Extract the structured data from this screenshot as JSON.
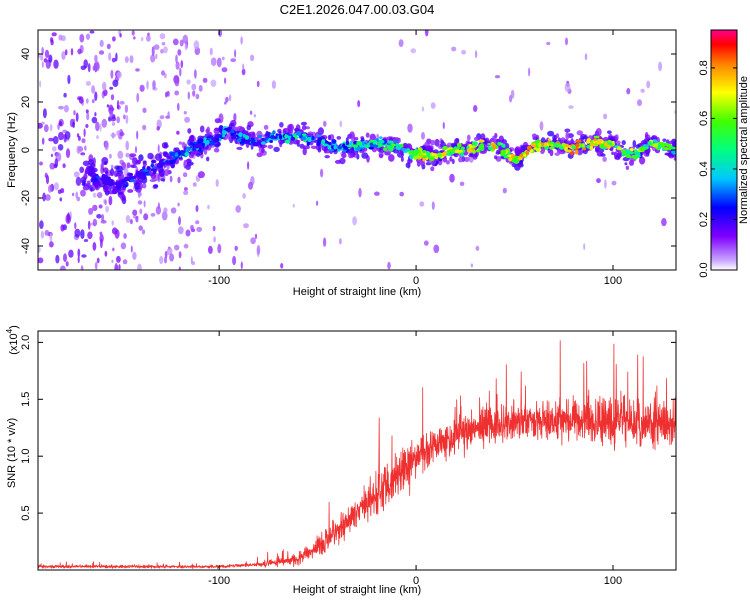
{
  "figure_title": "C2E1.2026.047.00.03.G04",
  "colors": {
    "signal_line": "#ef3030",
    "axis": "#000000",
    "background": "#ffffff"
  },
  "chart_data": [
    {
      "type": "heatmap",
      "title": "C2E1.2026.047.00.03.G04",
      "xlabel": "Height of straight line (km)",
      "ylabel": "Frequency (Hz)",
      "xlim": [
        -192,
        132
      ],
      "ylim": [
        -50,
        50
      ],
      "x_ticks": [
        -100,
        0,
        100
      ],
      "x_tick_labels": [
        "-100",
        "0",
        "100"
      ],
      "y_ticks": [
        -40,
        -20,
        0,
        20,
        40
      ],
      "y_tick_labels": [
        "-40",
        "-20",
        "0",
        "20",
        "40"
      ],
      "colorbar": {
        "label": "Normalized spectral amplitude",
        "range": [
          0,
          0.95
        ],
        "ticks": [
          0,
          0.2,
          0.4,
          0.6,
          0.8
        ],
        "tick_labels": [
          "0.0",
          "0.2",
          "0.4",
          "0.6",
          "0.8"
        ],
        "colormap": [
          "#ffffff",
          "#8000ff",
          "#0000ff",
          "#00ffff",
          "#00ff00",
          "#ffff00",
          "#ff8000",
          "#ff0000",
          "#ff00a0"
        ]
      },
      "ridge": {
        "x": [
          -160,
          -150,
          -140,
          -130,
          -120,
          -110,
          -100,
          -95,
          -90,
          -80,
          -70,
          -60,
          -50,
          -40,
          -30,
          -20,
          -10,
          0,
          10,
          20,
          30,
          40,
          45,
          50,
          55,
          60,
          70,
          80,
          90,
          100,
          110,
          120,
          132
        ],
        "frequency": [
          -12,
          -14,
          -10,
          -6,
          -2,
          2,
          6,
          9,
          5,
          3,
          6,
          6,
          4,
          1,
          2,
          3,
          2,
          -2,
          -2,
          0,
          1,
          2,
          -1,
          -4,
          -2,
          2,
          2,
          1,
          3,
          2,
          -2,
          3,
          0
        ],
        "amplitude": [
          0.3,
          0.3,
          0.35,
          0.4,
          0.45,
          0.45,
          0.5,
          0.45,
          0.45,
          0.45,
          0.5,
          0.55,
          0.5,
          0.55,
          0.55,
          0.6,
          0.65,
          0.8,
          0.85,
          0.8,
          0.85,
          0.85,
          0.8,
          0.9,
          0.85,
          0.9,
          0.85,
          0.9,
          0.85,
          0.8,
          0.75,
          0.75,
          0.7
        ]
      }
    },
    {
      "type": "line",
      "xlabel": "Height of straight line (km)",
      "ylabel": "SNR (10 * v/v)",
      "y_scale_label": "(x10",
      "y_scale_exponent": "4",
      "y_scale_suffix": ")",
      "xlim": [
        -192,
        132
      ],
      "ylim": [
        0,
        2.1
      ],
      "x_ticks": [
        -100,
        0,
        100
      ],
      "x_tick_labels": [
        "-100",
        "0",
        "100"
      ],
      "y_ticks": [
        0.5,
        1.0,
        1.5,
        2.0
      ],
      "y_tick_labels": [
        "0.5",
        "1.0",
        "1.5",
        "2.0"
      ],
      "series": [
        {
          "name": "SNR",
          "color": "#ef3030",
          "x": [
            -192,
            -180,
            -160,
            -140,
            -120,
            -100,
            -90,
            -80,
            -70,
            -60,
            -55,
            -50,
            -45,
            -40,
            -35,
            -30,
            -25,
            -20,
            -15,
            -10,
            -5,
            0,
            5,
            10,
            15,
            20,
            25,
            30,
            40,
            50,
            60,
            70,
            80,
            90,
            100,
            110,
            120,
            132
          ],
          "mean": [
            0.03,
            0.03,
            0.03,
            0.03,
            0.03,
            0.03,
            0.04,
            0.05,
            0.07,
            0.1,
            0.14,
            0.2,
            0.26,
            0.34,
            0.42,
            0.5,
            0.58,
            0.66,
            0.75,
            0.83,
            0.9,
            0.97,
            1.04,
            1.1,
            1.15,
            1.2,
            1.23,
            1.26,
            1.28,
            1.3,
            1.3,
            1.31,
            1.32,
            1.32,
            1.31,
            1.3,
            1.29,
            1.27
          ],
          "spread": [
            0.02,
            0.02,
            0.02,
            0.02,
            0.02,
            0.02,
            0.02,
            0.03,
            0.05,
            0.08,
            0.1,
            0.12,
            0.15,
            0.18,
            0.2,
            0.22,
            0.24,
            0.25,
            0.26,
            0.27,
            0.27,
            0.27,
            0.27,
            0.27,
            0.27,
            0.27,
            0.27,
            0.27,
            0.27,
            0.27,
            0.27,
            0.28,
            0.28,
            0.3,
            0.3,
            0.3,
            0.28,
            0.27
          ]
        }
      ]
    }
  ]
}
